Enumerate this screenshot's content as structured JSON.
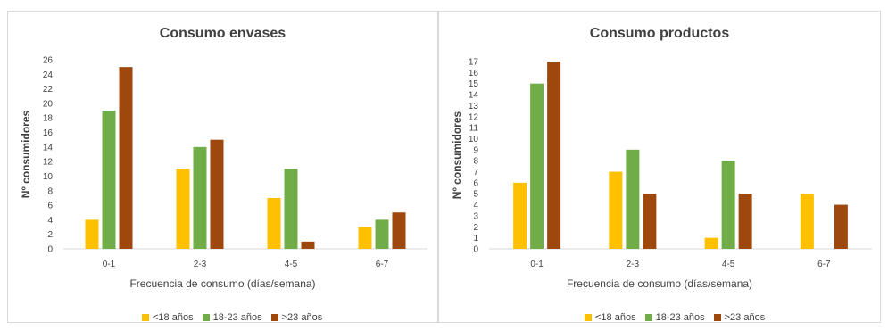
{
  "chart_data": [
    {
      "type": "bar",
      "title": "Consumo envases",
      "xlabel": "Frecuencia de consumo (días/semana)",
      "ylabel": "Nº consumidores",
      "categories": [
        "0-1",
        "2-3",
        "4-5",
        "6-7"
      ],
      "ylim": [
        0,
        26
      ],
      "yticks": [
        0,
        2,
        4,
        6,
        8,
        10,
        12,
        14,
        16,
        18,
        20,
        22,
        24,
        26
      ],
      "legend_position": "bottom",
      "grid": false,
      "series": [
        {
          "name": "<18 años",
          "color": "#ffc000",
          "values": [
            4,
            11,
            7,
            3
          ]
        },
        {
          "name": "18-23 años",
          "color": "#70ad47",
          "values": [
            19,
            14,
            11,
            4
          ]
        },
        {
          "name": ">23 años",
          "color": "#9e480e",
          "values": [
            25,
            15,
            1,
            5
          ]
        }
      ]
    },
    {
      "type": "bar",
      "title": "Consumo productos",
      "xlabel": "Frecuencia de consumo (días/semana)",
      "ylabel": "Nº consumidores",
      "categories": [
        "0-1",
        "2-3",
        "4-5",
        "6-7"
      ],
      "ylim": [
        0,
        17
      ],
      "yticks": [
        0,
        1,
        2,
        3,
        4,
        5,
        6,
        7,
        8,
        9,
        10,
        11,
        12,
        13,
        14,
        15,
        16,
        17
      ],
      "legend_position": "bottom",
      "grid": false,
      "series": [
        {
          "name": "<18 años",
          "color": "#ffc000",
          "values": [
            6,
            7,
            1,
            5
          ]
        },
        {
          "name": "18-23 años",
          "color": "#70ad47",
          "values": [
            15,
            9,
            8,
            0
          ]
        },
        {
          "name": ">23 años",
          "color": "#9e480e",
          "values": [
            17,
            5,
            5,
            4
          ]
        }
      ]
    }
  ]
}
